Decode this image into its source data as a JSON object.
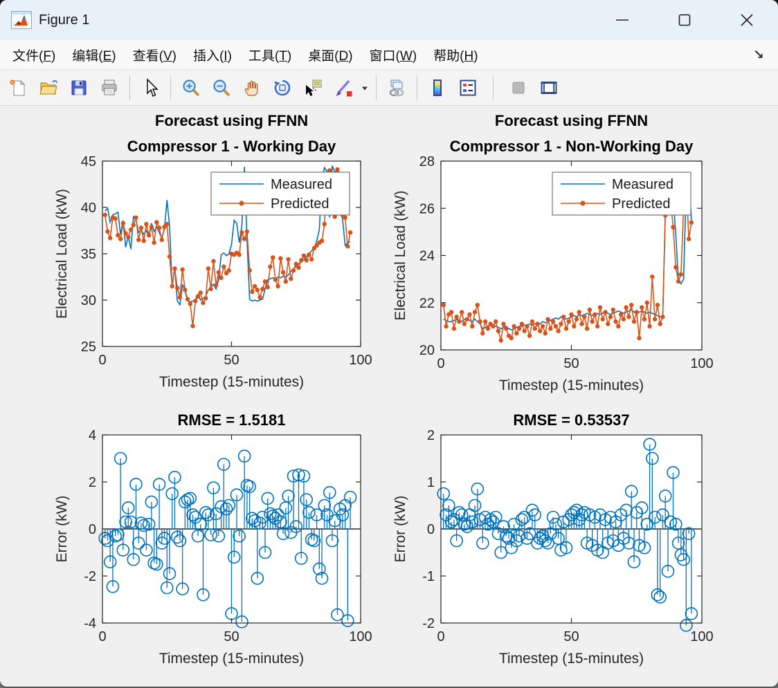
{
  "window": {
    "title": "Figure 1",
    "controls": {
      "minimize": "minimize",
      "maximize": "maximize",
      "close": "close"
    }
  },
  "menu_bar": {
    "items": [
      {
        "id": "file",
        "pre": "文件(",
        "key": "F",
        "post": ")"
      },
      {
        "id": "edit",
        "pre": "编辑(",
        "key": "E",
        "post": ")"
      },
      {
        "id": "view",
        "pre": "查看(",
        "key": "V",
        "post": ")"
      },
      {
        "id": "insert",
        "pre": "插入(",
        "key": "I",
        "post": ")"
      },
      {
        "id": "tools",
        "pre": "工具(",
        "key": "T",
        "post": ")"
      },
      {
        "id": "desktop",
        "pre": "桌面(",
        "key": "D",
        "post": ")"
      },
      {
        "id": "window",
        "pre": "窗口(",
        "key": "W",
        "post": ")"
      },
      {
        "id": "help",
        "pre": "帮助(",
        "key": "H",
        "post": ")"
      }
    ],
    "dock_glyph": "↘"
  },
  "toolbar": {
    "buttons": [
      {
        "id": "new-figure"
      },
      {
        "id": "open-file"
      },
      {
        "id": "save-figure"
      },
      {
        "id": "print-figure"
      },
      {
        "sep": true
      },
      {
        "id": "edit-plot"
      },
      {
        "sep": true
      },
      {
        "id": "zoom-in"
      },
      {
        "id": "zoom-out"
      },
      {
        "id": "pan"
      },
      {
        "id": "rotate-3d"
      },
      {
        "id": "data-cursor"
      },
      {
        "id": "brush"
      },
      {
        "id": "brush-caret",
        "caret": true
      },
      {
        "sep": true
      },
      {
        "id": "link-plot"
      },
      {
        "sep": true
      },
      {
        "id": "insert-colorbar"
      },
      {
        "id": "insert-legend"
      },
      {
        "sep": true,
        "wide": true
      },
      {
        "id": "hide-plot-tools",
        "disabled": true
      },
      {
        "id": "dock-figure"
      }
    ]
  },
  "colors": {
    "measured": "#0072BD",
    "predicted": "#D95319",
    "axes": "#262626",
    "figure_bg": "#f0f0f0"
  },
  "chart_data": [
    {
      "type": "line",
      "title_lines": [
        "Forecast using FFNN",
        "Compressor 1 - Working Day"
      ],
      "xlabel": "Timestep (15-minutes)",
      "ylabel": "Electrical Load (kW)",
      "xlim": [
        0,
        100
      ],
      "ylim": [
        25,
        45
      ],
      "xticks": [
        0,
        50,
        100
      ],
      "yticks": [
        25,
        30,
        35,
        40,
        45
      ],
      "grid": false,
      "x_start": 1,
      "legend": {
        "position": "northeast",
        "entries": [
          "Measured",
          "Predicted"
        ]
      },
      "series": [
        {
          "name": "Measured",
          "color": "#0072BD",
          "marker": "none",
          "values": [
            39.6,
            39.9,
            38.4,
            39.2,
            39.3,
            39.5,
            37.1,
            38.6,
            35.7,
            36.9,
            35.5,
            39.0,
            38.7,
            37.3,
            37.6,
            37.1,
            37.5,
            36.9,
            38.3,
            37.4,
            37.9,
            37.3,
            36.7,
            37.7,
            40.8,
            38.0,
            31.3,
            33.6,
            29.9,
            29.5,
            31.7,
            31.0,
            29.9,
            29.8,
            29.9,
            30.0,
            30.6,
            30.0,
            30.2,
            30.4,
            31.1,
            31.4,
            31.7,
            31.2,
            32.2,
            34.9,
            35.1,
            34.8,
            35.0,
            36.0,
            38.6,
            38.3,
            36.2,
            38.0,
            44.4,
            36.5,
            30.1,
            29.9,
            30.0,
            29.9,
            30.0,
            30.1,
            31.2,
            32.2,
            32.3,
            32.4,
            32.3,
            32.5,
            32.4,
            32.6,
            32.5,
            32.7,
            33.1,
            33.4,
            33.6,
            33.9,
            34.1,
            34.4,
            34.7,
            35.0,
            35.3,
            35.6,
            36.4,
            37.6,
            43.0,
            44.3,
            43.9,
            38.9,
            44.5,
            43.8,
            44.0,
            39.5,
            38.8,
            35.9,
            36.2,
            36.3
          ]
        },
        {
          "name": "Predicted",
          "color": "#D95319",
          "marker": "dot",
          "values": [
            39.2,
            37.4,
            36.7,
            38.9,
            38.8,
            37.0,
            36.6,
            38.3,
            37.2,
            36.8,
            37.6,
            38.1,
            38.9,
            36.5,
            37.8,
            36.4,
            38.2,
            37.0,
            37.9,
            36.2,
            38.4,
            37.8,
            36.5,
            37.9,
            38.2,
            34.7,
            31.5,
            33.4,
            31.3,
            30.3,
            33.3,
            31.1,
            30.1,
            29.6,
            27.2,
            29.9,
            30.4,
            30.8,
            29.7,
            30.2,
            33.4,
            31.2,
            34.2,
            31.6,
            33.0,
            32.4,
            33.6,
            32.9,
            33.2,
            35.0,
            34.9,
            35.1,
            34.9,
            37.3,
            36.6,
            37.4,
            33.2,
            30.9,
            31.5,
            31.1,
            30.3,
            31.2,
            32.0,
            31.4,
            33.6,
            34.6,
            32.2,
            31.5,
            34.5,
            33.0,
            32.0,
            34.4,
            32.3,
            33.2,
            33.9,
            33.5,
            34.3,
            34.8,
            34.3,
            34.9,
            34.4,
            35.6,
            35.9,
            36.2,
            36.4,
            38.2,
            43.2,
            44.0,
            43.5,
            39.0,
            44.1,
            43.6,
            39.2,
            38.9,
            35.8,
            37.3
          ]
        }
      ]
    },
    {
      "type": "line",
      "title_lines": [
        "Forecast using FFNN",
        "Compressor 1 - Non-Working Day"
      ],
      "xlabel": "Timestep (15-minutes)",
      "ylabel": "Electrical Load (kW)",
      "xlim": [
        0,
        100
      ],
      "ylim": [
        20,
        28
      ],
      "xticks": [
        0,
        50,
        100
      ],
      "yticks": [
        20,
        22,
        24,
        26,
        28
      ],
      "grid": false,
      "x_start": 1,
      "legend": {
        "position": "northeast",
        "entries": [
          "Measured",
          "Predicted"
        ]
      },
      "series": [
        {
          "name": "Measured",
          "color": "#0072BD",
          "marker": "none",
          "values": [
            21.3,
            21.25,
            21.2,
            21.2,
            21.25,
            21.3,
            21.25,
            21.2,
            21.3,
            21.3,
            21.25,
            21.2,
            21.3,
            21.2,
            21.1,
            20.9,
            20.95,
            21.0,
            21.05,
            21.0,
            21.0,
            20.95,
            20.9,
            20.95,
            21.0,
            20.9,
            20.85,
            20.9,
            20.95,
            21.0,
            21.0,
            21.05,
            21.0,
            21.1,
            21.05,
            21.1,
            21.15,
            21.1,
            21.2,
            21.15,
            21.2,
            21.25,
            21.3,
            21.35,
            21.3,
            21.4,
            21.35,
            21.3,
            21.35,
            21.4,
            21.45,
            21.4,
            21.5,
            21.45,
            21.5,
            21.55,
            21.5,
            21.45,
            21.5,
            21.55,
            21.5,
            21.55,
            21.6,
            21.55,
            21.5,
            21.55,
            21.6,
            21.65,
            21.6,
            21.55,
            21.6,
            21.65,
            21.7,
            21.6,
            21.55,
            21.6,
            21.65,
            21.6,
            21.55,
            21.6,
            21.55,
            21.5,
            21.45,
            21.4,
            21.4,
            25.9,
            26.5,
            26.6,
            26.4,
            24.9,
            23.0,
            22.8,
            23.0,
            26.9,
            27.3,
            25.5
          ]
        },
        {
          "name": "Predicted",
          "color": "#D95319",
          "marker": "dot",
          "values": [
            21.9,
            21.0,
            21.5,
            21.6,
            20.9,
            21.4,
            21.2,
            21.6,
            21.1,
            21.3,
            21.5,
            21.0,
            21.6,
            21.9,
            21.2,
            20.7,
            21.2,
            20.9,
            21.1,
            21.0,
            21.2,
            20.8,
            20.4,
            21.1,
            20.9,
            20.6,
            20.5,
            21.0,
            20.7,
            20.9,
            21.1,
            20.8,
            21.0,
            20.6,
            21.2,
            20.9,
            21.1,
            20.8,
            21.0,
            20.7,
            21.3,
            20.9,
            21.2,
            21.0,
            20.8,
            21.1,
            21.4,
            20.9,
            21.2,
            21.5,
            21.0,
            21.3,
            21.6,
            21.1,
            21.4,
            20.9,
            21.7,
            21.2,
            21.5,
            21.0,
            21.8,
            21.3,
            21.6,
            21.1,
            21.4,
            21.7,
            21.2,
            21.0,
            21.5,
            21.3,
            21.8,
            21.4,
            21.9,
            21.2,
            21.6,
            20.5,
            21.8,
            21.3,
            22.0,
            21.0,
            23.1,
            21.3,
            21.9,
            21.1,
            21.4,
            25.7,
            26.6,
            26.3,
            25.2,
            23.5,
            22.9,
            23.2,
            26.0,
            27.1,
            24.7,
            25.4
          ]
        }
      ]
    },
    {
      "type": "stem",
      "title_lines": [
        "RMSE = 1.5181"
      ],
      "rmse": 1.5181,
      "xlabel": "Timestep (15-minutes)",
      "ylabel": "Error (kW)",
      "xlim": [
        0,
        100
      ],
      "ylim": [
        -4,
        4
      ],
      "xticks": [
        0,
        50,
        100
      ],
      "yticks": [
        -4,
        -2,
        0,
        2,
        4
      ],
      "grid": false,
      "x_start": 1,
      "color": "#0072BD",
      "values": [
        -0.4,
        -0.5,
        -1.4,
        -2.45,
        -0.3,
        -0.25,
        3.0,
        -0.9,
        0.3,
        0.9,
        0.3,
        -1.3,
        1.9,
        -0.6,
        0.25,
        0.15,
        -0.9,
        0.2,
        1.15,
        -1.45,
        -1.5,
        1.9,
        -0.6,
        -0.4,
        -2.5,
        -1.9,
        1.5,
        2.2,
        -0.35,
        -0.5,
        -2.55,
        1.15,
        1.25,
        1.3,
        0.6,
        0.5,
        -0.3,
        0.2,
        -2.8,
        0.7,
        0.6,
        -0.25,
        1.75,
        0.65,
        -0.3,
        0.95,
        2.75,
        0.85,
        1.0,
        -3.6,
        -1.2,
        1.45,
        -0.3,
        -3.95,
        3.1,
        1.85,
        1.8,
        0.45,
        0.35,
        -2.1,
        0.25,
        0.5,
        -1.0,
        1.3,
        0.65,
        0.55,
        0.45,
        0.6,
        0.3,
        -0.2,
        0.9,
        1.4,
        -0.15,
        2.25,
        0.1,
        2.3,
        -1.25,
        2.25,
        1.25,
        0.7,
        -0.45,
        -0.5,
        0.6,
        -1.7,
        -2.1,
        1.0,
        0.6,
        1.55,
        -0.5,
        0.35,
        -3.65,
        0.85,
        0.6,
        1.0,
        -3.9,
        1.35
      ]
    },
    {
      "type": "stem",
      "title_lines": [
        "RMSE = 0.53537"
      ],
      "rmse": 0.53537,
      "xlabel": "Timestep (15-minutes)",
      "ylabel": "Error (kW)",
      "xlim": [
        0,
        100
      ],
      "ylim": [
        -2,
        2
      ],
      "xticks": [
        0,
        50,
        100
      ],
      "yticks": [
        -2,
        -1,
        0,
        1,
        2
      ],
      "grid": false,
      "x_start": 1,
      "color": "#0072BD",
      "values": [
        0.75,
        0.3,
        0.5,
        0.15,
        0.2,
        -0.25,
        0.35,
        0.3,
        0.1,
        0.05,
        0.3,
        0.15,
        0.5,
        0.85,
        0.2,
        -0.3,
        0.25,
        0.1,
        0.2,
        0.15,
        0.25,
        -0.1,
        -0.5,
        0.05,
        -0.15,
        -0.2,
        -0.4,
        0.1,
        -0.25,
        -0.15,
        0.2,
        0.25,
        -0.2,
        -0.1,
        0.4,
        0.3,
        -0.3,
        -0.2,
        -0.15,
        -0.25,
        -0.3,
        -0.1,
        0.25,
        0.1,
        -0.2,
        -0.45,
        0.15,
        -0.4,
        0.2,
        0.3,
        0.35,
        0.4,
        0.2,
        0.3,
        0.35,
        -0.3,
        0.3,
        -0.35,
        0.25,
        -0.45,
        0.3,
        -0.5,
        0.2,
        -0.3,
        0.25,
        -0.25,
        0.15,
        -0.35,
        0.3,
        -0.2,
        0.4,
        -0.3,
        0.8,
        -0.7,
        0.35,
        -0.35,
        0.45,
        -0.4,
        0.1,
        1.8,
        1.5,
        0.25,
        -1.4,
        -1.45,
        0.3,
        0.7,
        -0.9,
        0.15,
        1.2,
        0.1,
        -0.3,
        -0.55,
        -0.65,
        -2.05,
        -0.1,
        -1.8
      ]
    }
  ]
}
